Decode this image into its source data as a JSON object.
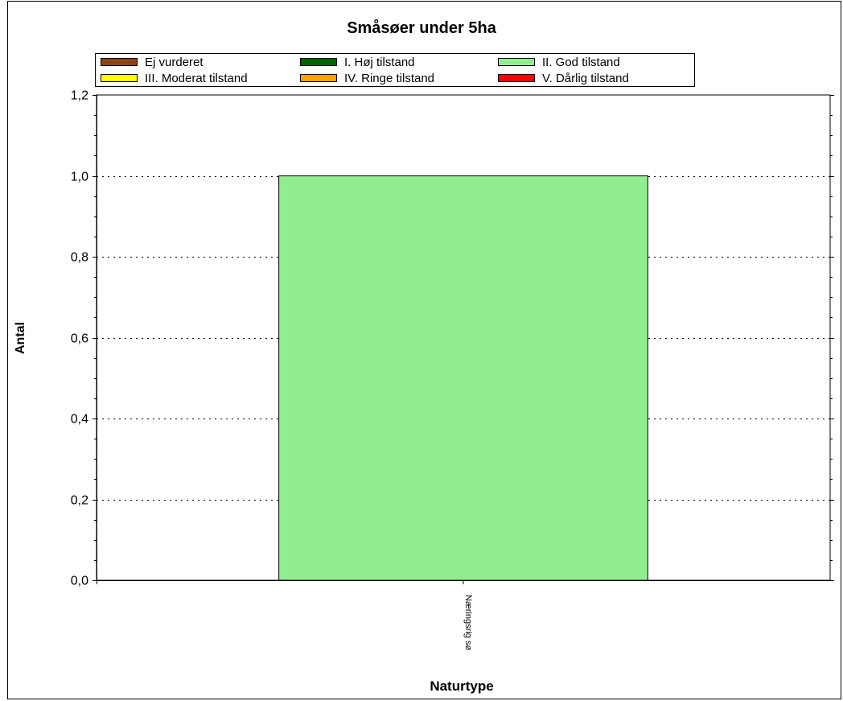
{
  "chart_data": {
    "type": "bar",
    "title": "Småsøer under 5ha",
    "xlabel": "Naturtype",
    "ylabel": "Antal",
    "categories": [
      "Næringsrig sø"
    ],
    "series": [
      {
        "name": "Ej vurderet",
        "color": "#8B4513",
        "values": [
          0
        ]
      },
      {
        "name": "I. Høj tilstand",
        "color": "#006400",
        "values": [
          0
        ]
      },
      {
        "name": "II. God tilstand",
        "color": "#90EE90",
        "values": [
          1
        ]
      },
      {
        "name": "III. Moderat tilstand",
        "color": "#FFFF00",
        "values": [
          0
        ]
      },
      {
        "name": "IV. Ringe tilstand",
        "color": "#FFA500",
        "values": [
          0
        ]
      },
      {
        "name": "V. Dårlig tilstand",
        "color": "#FF0000",
        "values": [
          0
        ]
      }
    ],
    "ylim": [
      0,
      1.2
    ],
    "yticks": [
      "0,0",
      "0,2",
      "0,4",
      "0,6",
      "0,8",
      "1,0",
      "1,2"
    ],
    "grid": "dotted horizontal",
    "legend_position": "top"
  }
}
